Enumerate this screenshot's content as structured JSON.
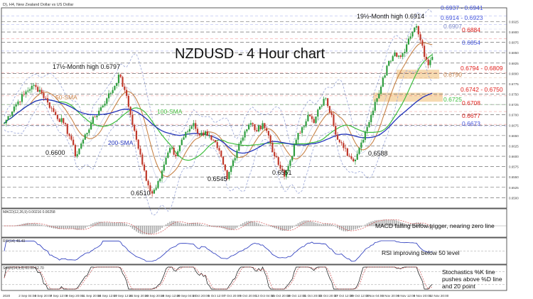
{
  "header": {
    "symbol_line": "D), H4, New Zealand Dollar vs US Dollar"
  },
  "title": "NZDUSD - 4 Hour chart",
  "colors": {
    "up": "#2e9e3e",
    "down": "#c0392b",
    "sma50": "#c8844a",
    "sma100": "#3fbf3f",
    "sma200": "#2233bb",
    "bb": "#9aa6d8",
    "grid": "#555555",
    "red_level": "#e0201c",
    "blue_level": "#4455dd",
    "zone": "#f5d3a3"
  },
  "levels": [
    {
      "label": "0.6937 - 0.6941",
      "value": 0.6939,
      "color": "blue"
    },
    {
      "label": "0.6914 - 0.6923",
      "value": 0.6918,
      "color": "blue"
    },
    {
      "label": "0.6907",
      "value": 0.6907,
      "color": "bb"
    },
    {
      "label": "0.6884",
      "value": 0.6884,
      "color": "red"
    },
    {
      "label": "0.6854",
      "value": 0.6854,
      "color": "blue"
    },
    {
      "label": "0.6794 - 0.6809",
      "value": 0.6801,
      "color": "red"
    },
    {
      "label": "0.6790",
      "value": 0.679,
      "color": "sma50"
    },
    {
      "label": "0.6742 - 0.6750",
      "value": 0.6746,
      "color": "red"
    },
    {
      "label": "0.6725",
      "value": 0.6725,
      "color": "sma100"
    },
    {
      "label": "0.6708",
      "value": 0.6708,
      "color": "red"
    },
    {
      "label": "0.6677",
      "value": 0.6677,
      "color": "red"
    },
    {
      "label": "0.6673",
      "value": 0.6673,
      "color": "blue"
    }
  ],
  "annotations": {
    "high19": "19½-Month high 0.6914",
    "high17": "17½-Month high 0.6797",
    "sma50": "50-SMA",
    "sma100": "100-SMA",
    "sma200": "200-SMA",
    "lows": [
      "0.6600",
      "0.6510",
      "0.6545",
      "0.6551",
      "0.6588"
    ]
  },
  "indicators": {
    "macd_header": "MACD(12,26,9) 0.00216 0.00258",
    "macd_note": "MACD falling below trigger, nearing zero line",
    "rsi_header": "RSI(14) 48.49",
    "rsi_note": "RSI improving below 50 level",
    "stoch_header": "Stoch(14,3,3) 61.00 52.70",
    "stoch_note_1": "Stochastics %K line",
    "stoch_note_2": "pushes above %D line",
    "stoch_note_3": "and 20 point"
  },
  "x_axis_labels": [
    "2020",
    "2 Sep 04:00",
    "4 Sep 20:00",
    "7 Sep 12:00",
    "9 Sep 20:00",
    "11 Sep 20:00",
    "15 Sep 12:00",
    "17 Sep 12:00",
    "21 Sep 20:00",
    "23 Sep 20:00",
    "25 Sep 12:00",
    "29 Sep 04:00",
    "1 Oct 20:00",
    "5 Oct 12:00",
    "7 Oct 20:00",
    "9 Oct 20:00",
    "13 Oct 04:00",
    "15 Oct 20:00",
    "19 Oct 12:00",
    "21 Oct 20:00",
    "23 Oct 20:00",
    "27 Oct 12:00",
    "29 Oct 12:00",
    "2 Nov 04:00",
    "4 Nov 20:00",
    "6 Nov 12:00",
    "9 Nov 20:00",
    "12 Nov 20:00"
  ],
  "chart_data": {
    "type": "candlestick",
    "y_range": [
      0.648,
      0.6955
    ],
    "anchors": [
      [
        0,
        0.668
      ],
      [
        5,
        0.672
      ],
      [
        10,
        0.675
      ],
      [
        14,
        0.677
      ],
      [
        18,
        0.676
      ],
      [
        22,
        0.673
      ],
      [
        26,
        0.67
      ],
      [
        30,
        0.668
      ],
      [
        34,
        0.664
      ],
      [
        36,
        0.66
      ],
      [
        40,
        0.664
      ],
      [
        44,
        0.668
      ],
      [
        48,
        0.671
      ],
      [
        52,
        0.674
      ],
      [
        56,
        0.677
      ],
      [
        58,
        0.6797
      ],
      [
        61,
        0.676
      ],
      [
        64,
        0.67
      ],
      [
        67,
        0.664
      ],
      [
        70,
        0.658
      ],
      [
        73,
        0.653
      ],
      [
        75,
        0.651
      ],
      [
        78,
        0.654
      ],
      [
        81,
        0.658
      ],
      [
        84,
        0.662
      ],
      [
        87,
        0.66
      ],
      [
        90,
        0.664
      ],
      [
        93,
        0.666
      ],
      [
        96,
        0.668
      ],
      [
        99,
        0.665
      ],
      [
        102,
        0.666
      ],
      [
        105,
        0.664
      ],
      [
        108,
        0.662
      ],
      [
        111,
        0.658
      ],
      [
        113,
        0.6545
      ],
      [
        116,
        0.659
      ],
      [
        119,
        0.663
      ],
      [
        122,
        0.666
      ],
      [
        125,
        0.668
      ],
      [
        128,
        0.666
      ],
      [
        131,
        0.668
      ],
      [
        134,
        0.665
      ],
      [
        137,
        0.66
      ],
      [
        140,
        0.657
      ],
      [
        142,
        0.6551
      ],
      [
        145,
        0.659
      ],
      [
        148,
        0.664
      ],
      [
        151,
        0.667
      ],
      [
        154,
        0.67
      ],
      [
        157,
        0.668
      ],
      [
        160,
        0.672
      ],
      [
        163,
        0.674
      ],
      [
        166,
        0.67
      ],
      [
        169,
        0.664
      ],
      [
        172,
        0.662
      ],
      [
        175,
        0.66
      ],
      [
        177,
        0.6588
      ],
      [
        180,
        0.662
      ],
      [
        183,
        0.666
      ],
      [
        186,
        0.67
      ],
      [
        189,
        0.674
      ],
      [
        192,
        0.679
      ],
      [
        195,
        0.683
      ],
      [
        198,
        0.685
      ],
      [
        201,
        0.684
      ],
      [
        204,
        0.687
      ],
      [
        207,
        0.69
      ],
      [
        209,
        0.6914
      ],
      [
        211,
        0.688
      ],
      [
        213,
        0.684
      ],
      [
        215,
        0.682
      ],
      [
        217,
        0.684
      ]
    ]
  }
}
